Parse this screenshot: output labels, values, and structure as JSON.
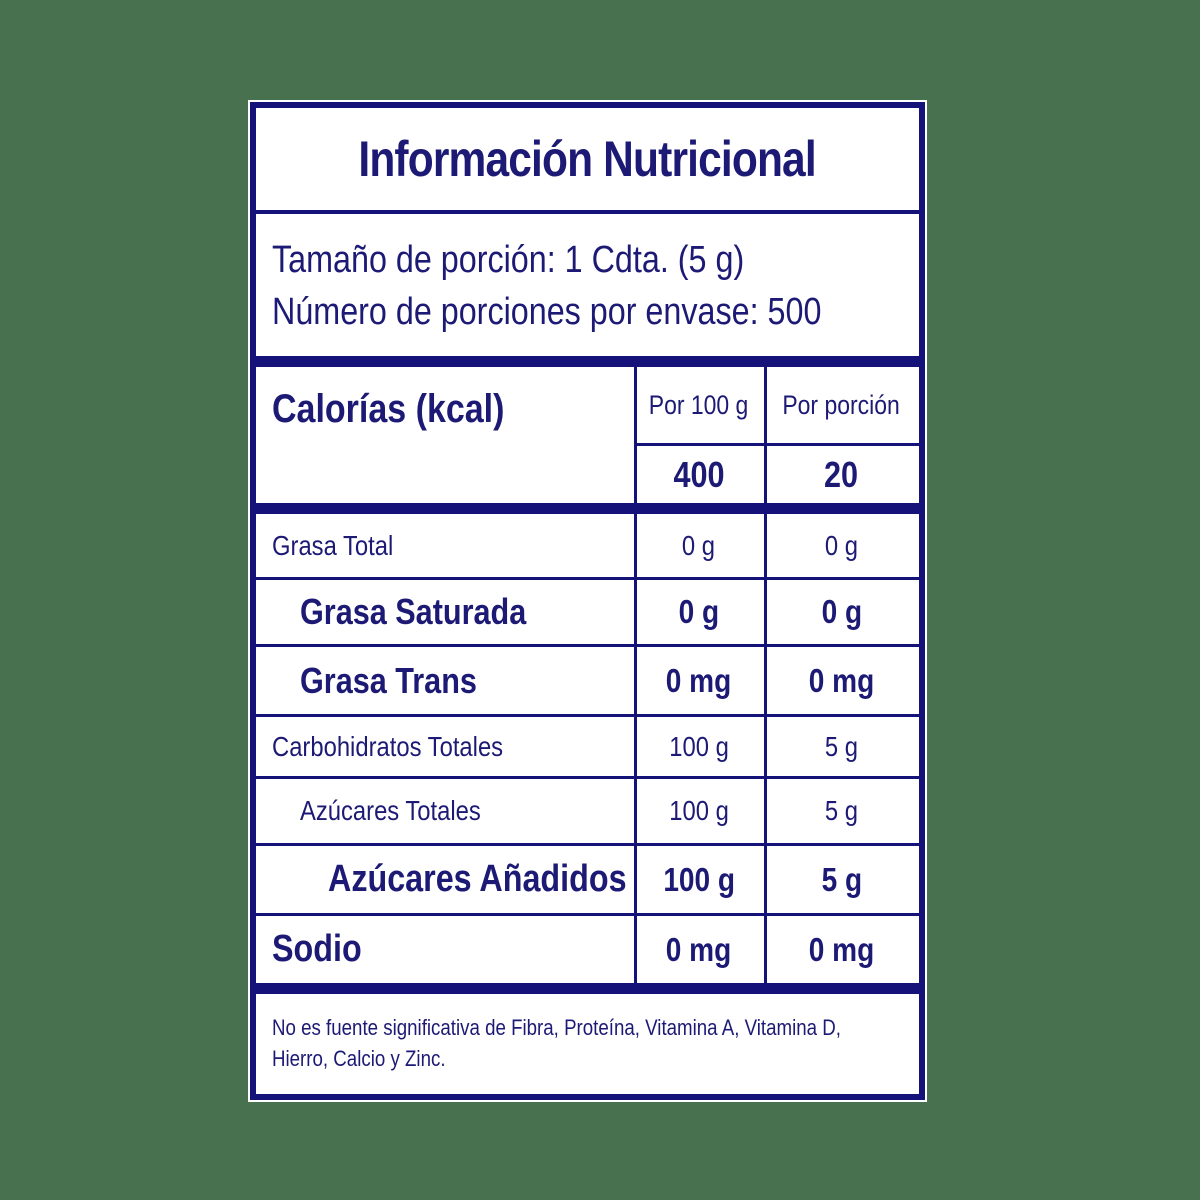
{
  "colors": {
    "page_background": "#47714F",
    "ink": "#1D1A75",
    "line": "#15137A",
    "card_background": "#FFFFFF"
  },
  "label": {
    "title": "Información Nutricional",
    "serving": {
      "line1": "Tamaño de porción: 1 Cdta. (5 g)",
      "line2": "Número de porciones por envase: 500"
    },
    "columns": {
      "per_100g": "Por 100 g",
      "per_portion": "Por porción"
    },
    "calories": {
      "label": "Calorías (kcal)",
      "per_100g": "400",
      "per_portion": "20"
    },
    "rows": [
      {
        "label": "Grasa Total",
        "per_100g": "0 g",
        "per_portion": "0 g"
      },
      {
        "label": "Grasa Saturada",
        "per_100g": "0 g",
        "per_portion": "0 g"
      },
      {
        "label": "Grasa Trans",
        "per_100g": "0 mg",
        "per_portion": "0 mg"
      },
      {
        "label": "Carbohidratos Totales",
        "per_100g": "100 g",
        "per_portion": "5 g"
      },
      {
        "label": "Azúcares Totales",
        "per_100g": "100 g",
        "per_portion": "5 g"
      },
      {
        "label": "Azúcares Añadidos",
        "per_100g": "100 g",
        "per_portion": "5 g"
      },
      {
        "label": "Sodio",
        "per_100g": "0 mg",
        "per_portion": "0 mg"
      }
    ],
    "footnote": {
      "line1": "No es fuente significativa de Fibra, Proteína, Vitamina A, Vitamina D,",
      "line2": "Hierro, Calcio y Zinc."
    }
  }
}
